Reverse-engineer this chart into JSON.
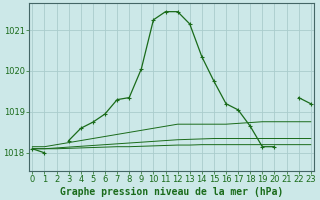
{
  "title": "Graphe pression niveau de la mer (hPa)",
  "bg_color": "#cce8e8",
  "grid_color": "#aacccc",
  "line_color": "#1a6b1a",
  "hours": [
    0,
    1,
    2,
    3,
    4,
    5,
    6,
    7,
    8,
    9,
    10,
    11,
    12,
    13,
    14,
    15,
    16,
    17,
    18,
    19,
    20,
    21,
    22,
    23
  ],
  "pressure_main": [
    1018.1,
    1018.0,
    null,
    1018.3,
    1018.6,
    1018.75,
    1018.95,
    1019.3,
    1019.35,
    1020.05,
    1021.25,
    1021.45,
    1021.45,
    1021.15,
    1020.35,
    1019.75,
    1019.2,
    1019.05,
    1018.65,
    1018.15,
    1018.15,
    null,
    1019.35,
    1019.2
  ],
  "pressure_flat1": [
    1018.15,
    1018.15,
    1018.2,
    1018.25,
    1018.3,
    1018.35,
    1018.4,
    1018.45,
    1018.5,
    1018.55,
    1018.6,
    1018.65,
    1018.7,
    1018.7,
    1018.7,
    1018.7,
    1018.7,
    1018.72,
    1018.74,
    1018.76,
    1018.76,
    1018.76,
    1018.76,
    1018.76
  ],
  "pressure_flat2": [
    1018.1,
    1018.1,
    1018.12,
    1018.14,
    1018.16,
    1018.18,
    1018.2,
    1018.22,
    1018.24,
    1018.26,
    1018.28,
    1018.3,
    1018.32,
    1018.33,
    1018.34,
    1018.35,
    1018.35,
    1018.35,
    1018.35,
    1018.35,
    1018.35,
    1018.35,
    1018.35,
    1018.35
  ],
  "pressure_flat3": [
    1018.1,
    1018.1,
    1018.1,
    1018.11,
    1018.12,
    1018.13,
    1018.14,
    1018.15,
    1018.15,
    1018.16,
    1018.17,
    1018.18,
    1018.19,
    1018.19,
    1018.2,
    1018.2,
    1018.2,
    1018.2,
    1018.2,
    1018.2,
    1018.2,
    1018.2,
    1018.2,
    1018.2
  ],
  "ylim": [
    1017.55,
    1021.65
  ],
  "yticks": [
    1018,
    1019,
    1020,
    1021
  ],
  "xlim": [
    -0.3,
    23.3
  ],
  "xticks": [
    0,
    1,
    2,
    3,
    4,
    5,
    6,
    7,
    8,
    9,
    10,
    11,
    12,
    13,
    14,
    15,
    16,
    17,
    18,
    19,
    20,
    21,
    22,
    23
  ],
  "tick_fontsize": 6.0,
  "title_fontsize": 7.0,
  "linewidth": 0.9,
  "markersize": 3.0,
  "figwidth": 3.2,
  "figheight": 2.0,
  "dpi": 100
}
